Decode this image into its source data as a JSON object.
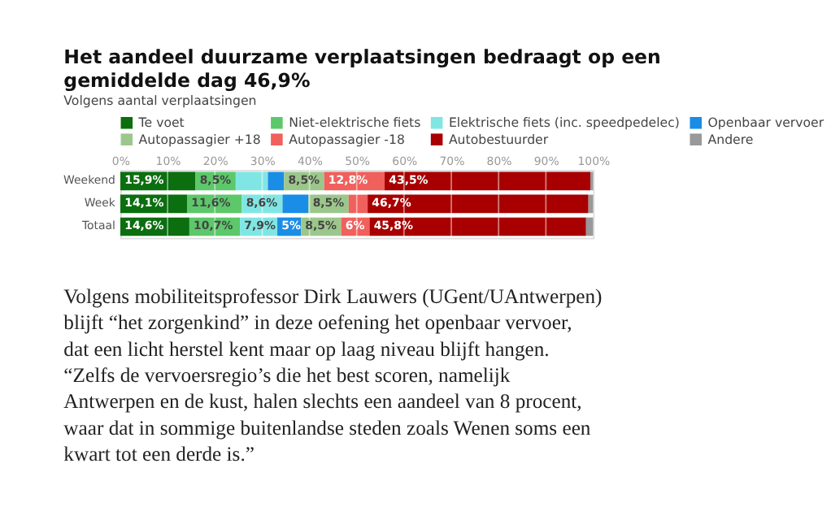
{
  "chart_data": {
    "type": "bar",
    "orientation": "horizontal",
    "stacked": true,
    "title": "Het aandeel duurzame verplaatsingen bedraagt op een gemiddelde dag 46,9%",
    "subtitle": "Volgens aantal verplaatsingen",
    "categories": [
      "Weekend",
      "Week",
      "Totaal"
    ],
    "series": [
      {
        "name": "Te voet",
        "color": "#0b6e0f",
        "values": [
          15.9,
          14.1,
          14.6
        ],
        "value_labels": [
          "15,9%",
          "14,1%",
          "14,6%"
        ]
      },
      {
        "name": "Niet-elektrische fiets",
        "color": "#5cc86a",
        "values": [
          8.5,
          11.6,
          10.7
        ],
        "value_labels": [
          "8,5%",
          "11,6%",
          "10,7%"
        ]
      },
      {
        "name": "Elektrische fiets (inc. speedpedelec)",
        "color": "#80e6e4",
        "values": [
          6.8,
          8.6,
          7.9
        ],
        "value_labels": [
          null,
          "8,6%",
          "7,9%"
        ]
      },
      {
        "name": "Openbaar vervoer",
        "color": "#1a8de6",
        "values": [
          3.4,
          5.5,
          5
        ],
        "value_labels": [
          null,
          null,
          "5%"
        ]
      },
      {
        "name": "Autopassagier +18",
        "color": "#9cc78c",
        "values": [
          8.5,
          8.5,
          8.5
        ],
        "value_labels": [
          "8,5%",
          "8,5%",
          "8,5%"
        ]
      },
      {
        "name": "Autopassagier -18",
        "color": "#f0605c",
        "values": [
          12.8,
          4.0,
          6
        ],
        "value_labels": [
          "12,8%",
          null,
          "6%"
        ]
      },
      {
        "name": "Autobestuurder",
        "color": "#a80000",
        "values": [
          43.5,
          46.7,
          45.8
        ],
        "value_labels": [
          "43,5%",
          "46,7%",
          "45,8%"
        ]
      },
      {
        "name": "Andere",
        "color": "#999999",
        "values": [
          0.6,
          1.0,
          1.5
        ],
        "value_labels": [
          null,
          null,
          null
        ]
      }
    ],
    "xlim": [
      0,
      100
    ],
    "xticks": [
      {
        "value": 0,
        "label": "0%"
      },
      {
        "value": 10,
        "label": "10%"
      },
      {
        "value": 20,
        "label": "20%"
      },
      {
        "value": 30,
        "label": "30%"
      },
      {
        "value": 40,
        "label": "40%"
      },
      {
        "value": 50,
        "label": "50%"
      },
      {
        "value": 60,
        "label": "60%"
      },
      {
        "value": 70,
        "label": "70%"
      },
      {
        "value": 80,
        "label": "80%"
      },
      {
        "value": 90,
        "label": "90%"
      },
      {
        "value": 100,
        "label": "100%"
      }
    ],
    "grid": "x",
    "legend": "top",
    "annotations": [
      "Volgens mobiliteitsprofessor Dirk Lauwers (UGent/UAntwerpen) blijft “het zorgenkind” in deze oefening het openbaar vervoer, dat een licht herstel kent maar op laag niveau blijft hangen. “Zelfs de vervoersregio’s die het best scoren, namelijk Antwerpen en de kust, halen slechts een aandeel van 8 procent, waar dat in sommige buitenlandse steden zoals Wenen soms een kwart tot een derde is.”"
    ]
  }
}
